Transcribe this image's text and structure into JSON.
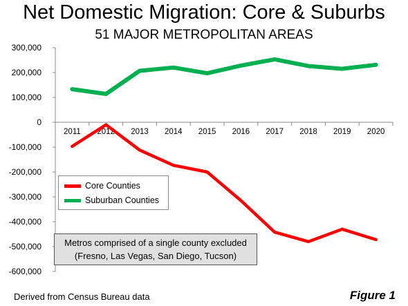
{
  "title": "Net Domestic Migration: Core & Suburbs",
  "subtitle": "51 MAJOR METROPOLITAN AREAS",
  "source": "Derived from Census Bureau data",
  "figure_label": "Figure 1",
  "note": {
    "line1": "Metros  comprised of a single county excluded",
    "line2": "(Fresno, Las Vegas, San Diego, Tucson)"
  },
  "colors": {
    "core": "#ff0000",
    "suburban": "#00b050"
  },
  "chart_data": {
    "type": "line",
    "title": "Net Domestic Migration: Core & Suburbs",
    "subtitle": "51 MAJOR METROPOLITAN AREAS",
    "xlabel": "",
    "ylabel": "",
    "categories": [
      "2011",
      "2012",
      "2013",
      "2014",
      "2015",
      "2016",
      "2017",
      "2018",
      "2019",
      "2020"
    ],
    "ylim": [
      -600000,
      300000
    ],
    "yticks": [
      300000,
      200000,
      100000,
      0,
      -100000,
      -200000,
      -300000,
      -400000,
      -500000,
      -600000
    ],
    "ytick_labels": [
      "300,000",
      "200,000",
      "100,000",
      "0",
      "-100,000",
      "-200,000",
      "-300,000",
      "-400,000",
      "-500,000",
      "-600,000"
    ],
    "grid": false,
    "legend": "center-left",
    "series": [
      {
        "name": "Core Counties",
        "color": "#ff0000",
        "values": [
          -97000,
          -10000,
          -112000,
          -173000,
          -200000,
          -315000,
          -442000,
          -480000,
          -430000,
          -472000
        ]
      },
      {
        "name": "Suburban Counties",
        "color": "#00b050",
        "values": [
          133000,
          114000,
          207000,
          220000,
          197000,
          228000,
          253000,
          226000,
          215000,
          231000
        ]
      }
    ]
  }
}
